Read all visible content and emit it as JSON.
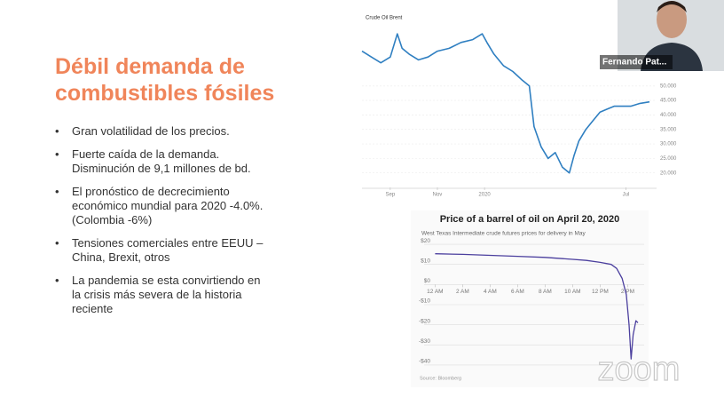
{
  "slide": {
    "title_lines": [
      "Débil demanda de",
      "combustibles fósiles"
    ],
    "bullets": [
      [
        "Gran volatilidad de los precios."
      ],
      [
        "Fuerte caída de la demanda.",
        "Disminución de 9,1 millones de bd."
      ],
      [
        "El pronóstico de decrecimiento",
        "económico mundial para 2020 -4.0%.",
        "(Colombia -6%)"
      ],
      [
        "Tensiones comerciales entre EEUU –",
        "China, Brexit, otros"
      ],
      [
        "La pandemia se esta convirtiendo en",
        "la crisis más severa de la historia",
        "reciente"
      ]
    ]
  },
  "participant": {
    "name": "Fernando Pat..."
  },
  "app": {
    "logo": "zoom"
  },
  "chart_data": [
    {
      "type": "line",
      "title": "Crude Oil Brent",
      "xticks": [
        {
          "value": 9,
          "label": "Sep"
        },
        {
          "value": 11,
          "label": "Nov"
        },
        {
          "value": 13,
          "label": "2020"
        },
        {
          "value": 19,
          "label": "Jul"
        }
      ],
      "xlim": [
        7.8,
        20.3
      ],
      "ylim": [
        15,
        72
      ],
      "yticks": [
        {
          "value": 20,
          "label": "20.000"
        },
        {
          "value": 25,
          "label": "25.000"
        },
        {
          "value": 30,
          "label": "30.000"
        },
        {
          "value": 35,
          "label": "35.000"
        },
        {
          "value": 40,
          "label": "40.000"
        },
        {
          "value": 45,
          "label": "45.000"
        },
        {
          "value": 50,
          "label": "50.000"
        }
      ],
      "grid": true,
      "series": [
        {
          "name": "Crude Oil Brent",
          "color": "#2f7fc1",
          "x": [
            7.8,
            8.2,
            8.6,
            9.0,
            9.3,
            9.5,
            9.8,
            10.2,
            10.6,
            11,
            11.5,
            12,
            12.5,
            12.9,
            13.1,
            13.4,
            13.8,
            14.2,
            14.6,
            14.9,
            15.1,
            15.4,
            15.7,
            16,
            16.3,
            16.6,
            16.8,
            17,
            17.3,
            17.6,
            17.9,
            18.2,
            18.5,
            18.8,
            19.2,
            19.6,
            20
          ],
          "values": [
            62,
            60,
            58,
            60,
            68,
            63,
            61,
            59,
            60,
            62,
            63,
            65,
            66,
            68,
            65,
            61,
            57,
            55,
            52,
            50,
            36,
            29,
            25,
            27,
            22,
            20,
            26,
            31,
            35,
            38,
            41,
            42,
            43,
            43,
            43,
            44,
            44.5
          ]
        }
      ]
    },
    {
      "type": "line",
      "title": "Price of a barrel of oil on April 20, 2020",
      "subtitle": "West Texas Intermediate crude futures prices for delivery in May",
      "source": "Source: Bloomberg",
      "xticks": [
        {
          "value": 0,
          "label": "12 AM"
        },
        {
          "value": 2,
          "label": "2 AM"
        },
        {
          "value": 4,
          "label": "4 AM"
        },
        {
          "value": 6,
          "label": "6 AM"
        },
        {
          "value": 8,
          "label": "8 AM"
        },
        {
          "value": 10,
          "label": "10 AM"
        },
        {
          "value": 12,
          "label": "12 PM"
        },
        {
          "value": 14,
          "label": "2 PM"
        }
      ],
      "xlim": [
        -0.8,
        15.2
      ],
      "ylim": [
        -42,
        22
      ],
      "yticks": [
        {
          "value": 20,
          "label": "$20"
        },
        {
          "value": 10,
          "label": "$10"
        },
        {
          "value": 0,
          "label": "$0"
        },
        {
          "value": -10,
          "label": "-$10"
        },
        {
          "value": -20,
          "label": "-$20"
        },
        {
          "value": -30,
          "label": "-$30"
        },
        {
          "value": -40,
          "label": "-$40"
        }
      ],
      "grid": true,
      "series": [
        {
          "name": "WTI May futures",
          "color": "#4b3f9e",
          "x": [
            0,
            2,
            4,
            6,
            8,
            10,
            11,
            12,
            12.8,
            13.2,
            13.6,
            13.9,
            14.1,
            14.25,
            14.4,
            14.6,
            14.75
          ],
          "values": [
            15.3,
            15,
            14.5,
            14,
            13.5,
            12.5,
            12,
            11,
            10,
            8,
            3,
            -5,
            -20,
            -37,
            -25,
            -18,
            -19
          ]
        }
      ]
    }
  ]
}
